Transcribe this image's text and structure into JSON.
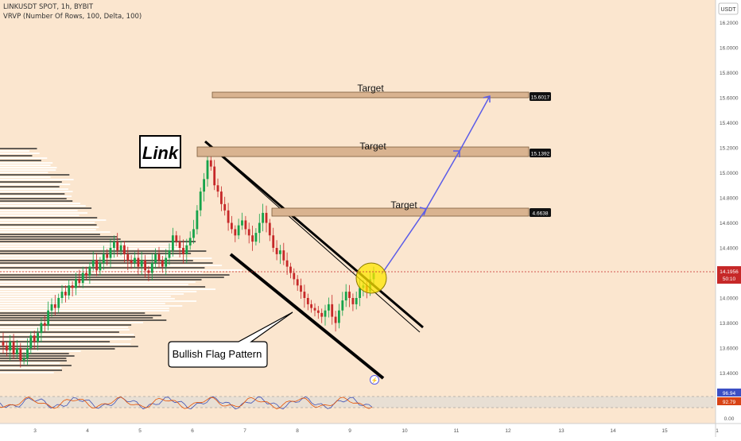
{
  "header": {
    "line1": "LINKUSDT SPOT, 1h, BYBIT",
    "line2": "VRVP (Number Of Rows, 100, Delta, 100)",
    "currency": "USDT"
  },
  "colors": {
    "background": "#fbe6cf",
    "bull_candle": "#16a34a",
    "bear_candle": "#c62828",
    "zone_fill": "#d9b390",
    "arrow": "#5b5ce8",
    "rsi_line_a": "#3f51b5",
    "rsi_line_b": "#e65100",
    "highlight": "#ffe600",
    "current_price": "#c62828",
    "rsi_badge_blue": "#3b4fc4",
    "rsi_badge_red": "#d84315"
  },
  "annotations": {
    "title_box": "Link",
    "callout": "Bullish Flag Pattern"
  },
  "chart_data": {
    "type": "candlestick",
    "ylim": [
      13.2,
      16.3
    ],
    "y_ticks": [
      "16.2000",
      "16.0000",
      "15.8000",
      "15.6000",
      "15.4000",
      "15.2000",
      "15.0000",
      "14.8000",
      "14.6000",
      "14.4000",
      "14.2000",
      "14.0000",
      "13.8000",
      "13.6000",
      "13.4000"
    ],
    "x_ticks": [
      "3",
      "4",
      "5",
      "6",
      "7",
      "8",
      "9",
      "10",
      "11",
      "12",
      "13",
      "14",
      "15",
      "1"
    ],
    "current_price": {
      "value": "14.1956",
      "countdown": "50:10"
    },
    "targets": [
      {
        "label": "Target",
        "price": "15.6017"
      },
      {
        "label": "Target",
        "price": "15.1392"
      },
      {
        "label": "Target",
        "price": "4.6638"
      }
    ],
    "rsi": {
      "labels": [
        "96.94",
        "92.79"
      ],
      "ticks": [
        "0.00"
      ],
      "range": [
        0,
        100
      ]
    },
    "candles_close": [
      13.62,
      13.58,
      13.65,
      13.55,
      13.6,
      13.5,
      13.52,
      13.6,
      13.7,
      13.65,
      13.72,
      13.8,
      13.78,
      13.9,
      13.95,
      13.92,
      14.0,
      14.05,
      14.02,
      14.1,
      14.08,
      14.15,
      14.12,
      14.2,
      14.18,
      14.25,
      14.3,
      14.22,
      14.28,
      14.35,
      14.32,
      14.4,
      14.45,
      14.38,
      14.42,
      14.35,
      14.3,
      14.28,
      14.32,
      14.25,
      14.3,
      14.22,
      14.2,
      14.28,
      14.35,
      14.3,
      14.25,
      14.32,
      14.38,
      14.5,
      14.45,
      14.4,
      14.35,
      14.42,
      14.48,
      14.55,
      14.7,
      14.85,
      14.95,
      15.1,
      15.05,
      14.9,
      14.85,
      14.75,
      14.7,
      14.6,
      14.55,
      14.5,
      14.58,
      14.62,
      14.55,
      14.5,
      14.45,
      14.52,
      14.6,
      14.68,
      14.6,
      14.5,
      14.4,
      14.35,
      14.38,
      14.3,
      14.25,
      14.2,
      14.15,
      14.1,
      14.05,
      14.0,
      13.95,
      13.92,
      13.9,
      13.88,
      13.85,
      13.9,
      13.95,
      13.85,
      13.8,
      13.9,
      13.98,
      14.05,
      14.0,
      13.95,
      14.0,
      14.08,
      14.1,
      14.05,
      14.15,
      14.2
    ]
  }
}
